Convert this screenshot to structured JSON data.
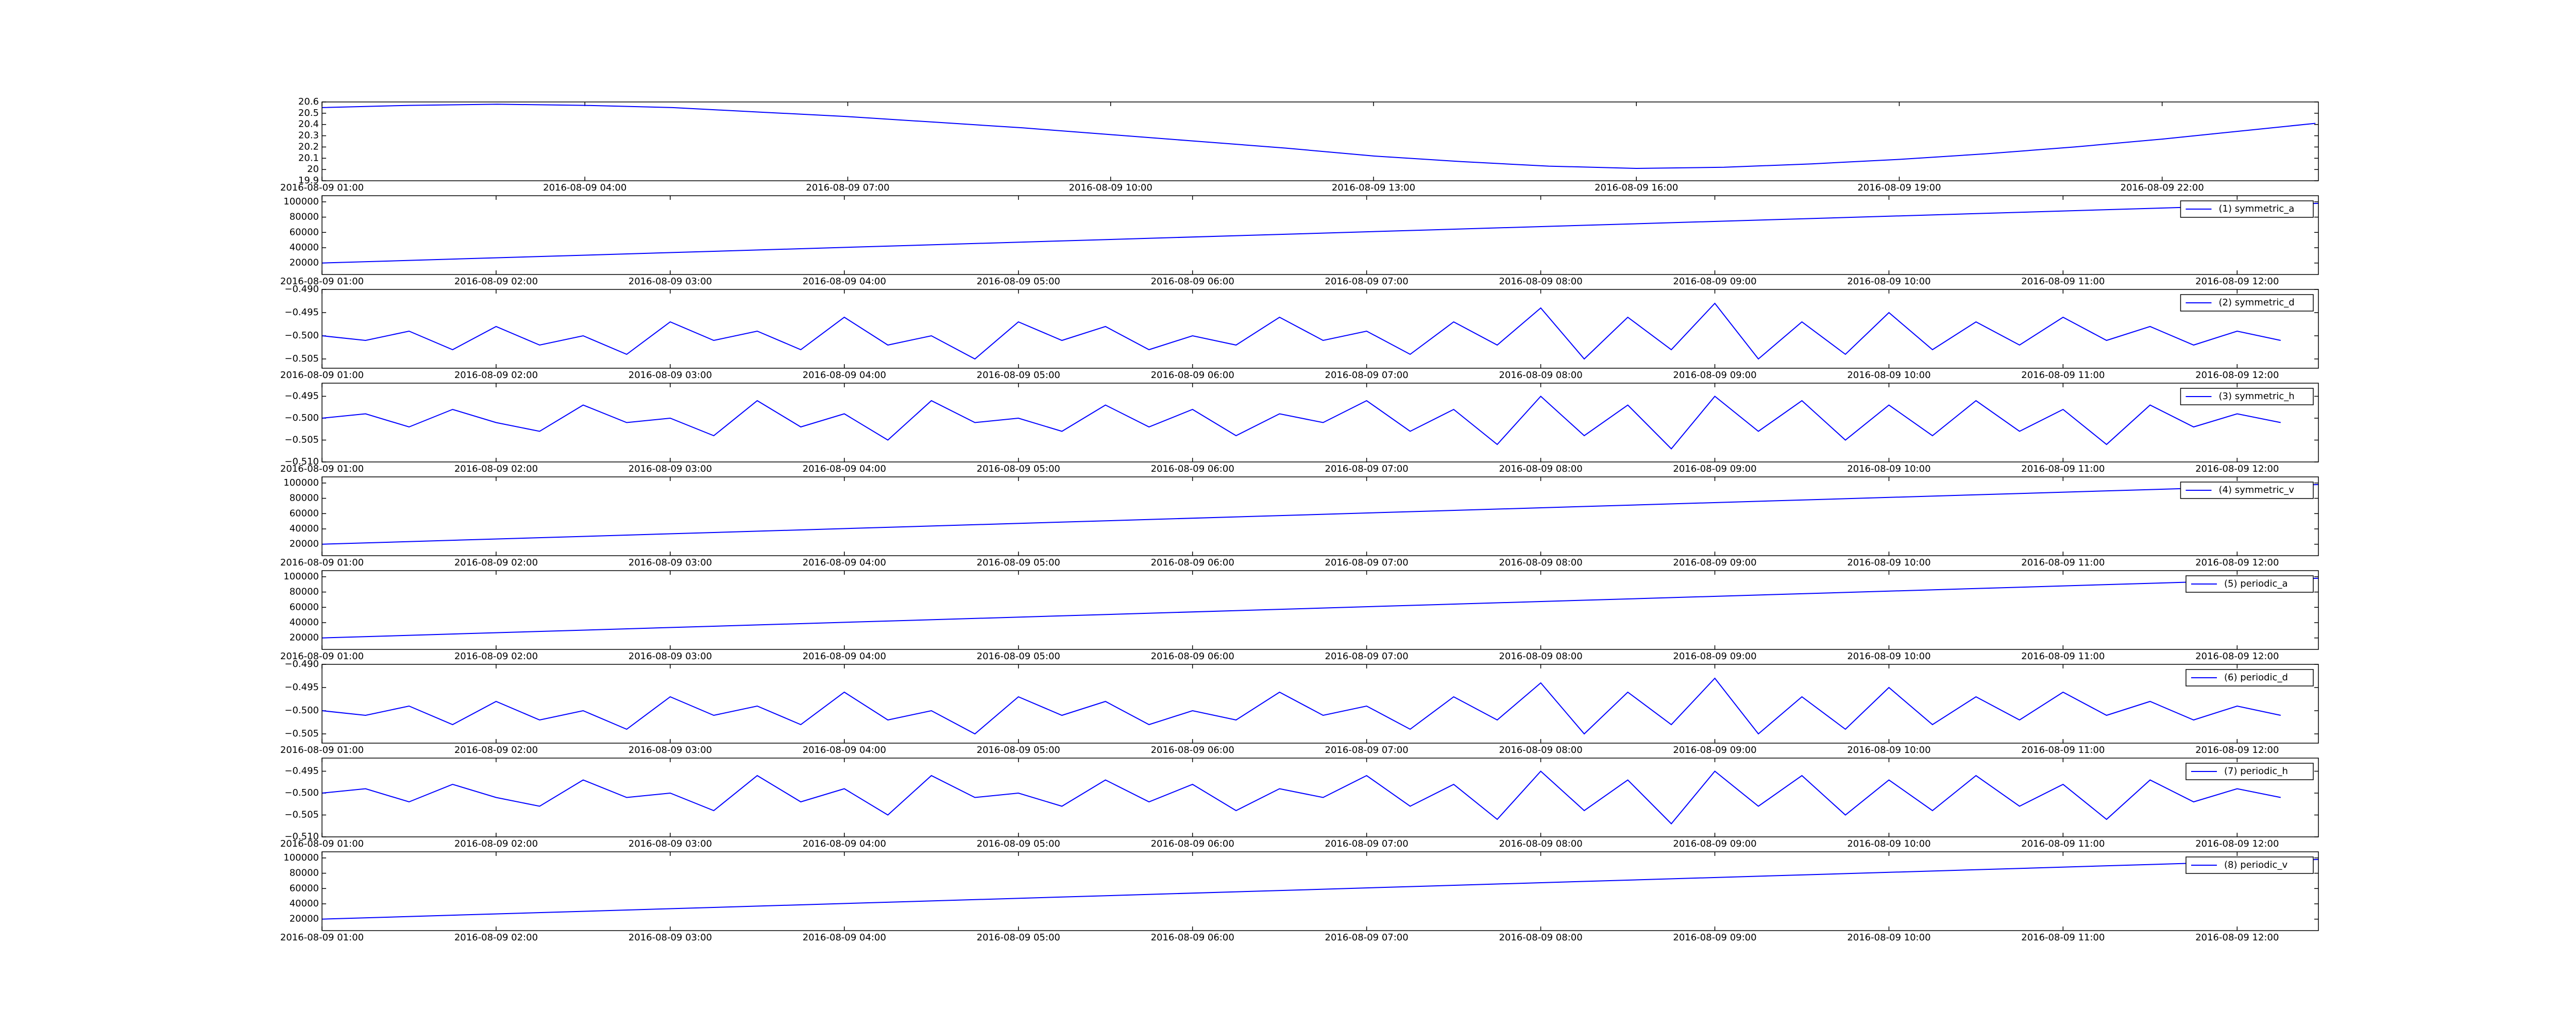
{
  "chart_data": [
    {
      "type": "line",
      "x": [
        "2016-08-09 01:00",
        "2016-08-09 02:00",
        "2016-08-09 03:00",
        "2016-08-09 04:00",
        "2016-08-09 05:00",
        "2016-08-09 06:00",
        "2016-08-09 07:00",
        "2016-08-09 08:00",
        "2016-08-09 09:00",
        "2016-08-09 10:00",
        "2016-08-09 11:00",
        "2016-08-09 12:00",
        "2016-08-09 13:00",
        "2016-08-09 14:00",
        "2016-08-09 15:00",
        "2016-08-09 16:00",
        "2016-08-09 17:00",
        "2016-08-09 18:00",
        "2016-08-09 19:00",
        "2016-08-09 20:00",
        "2016-08-09 21:00",
        "2016-08-09 22:00",
        "2016-08-09 23:00",
        "2016-08-09 23:45"
      ],
      "values": [
        20.55,
        20.57,
        20.58,
        20.57,
        20.55,
        20.51,
        20.47,
        20.42,
        20.37,
        20.31,
        20.25,
        20.19,
        20.12,
        20.07,
        20.03,
        20.01,
        20.02,
        20.05,
        20.09,
        20.14,
        20.2,
        20.27,
        20.35,
        20.41
      ],
      "color": "#0000ff",
      "xlim": [
        "2016-08-09 01:00",
        "2016-08-09 23:47"
      ],
      "xticks": [
        "2016-08-09 01:00",
        "2016-08-09 04:00",
        "2016-08-09 07:00",
        "2016-08-09 10:00",
        "2016-08-09 13:00",
        "2016-08-09 16:00",
        "2016-08-09 19:00",
        "2016-08-09 22:00"
      ],
      "ylim": [
        19.9,
        20.6
      ],
      "yticks": [
        19.9,
        20.0,
        20.1,
        20.2,
        20.3,
        20.4,
        20.5,
        20.6
      ]
    },
    {
      "type": "line",
      "x": [
        "2016-08-09 01:00",
        "2016-08-09 12:28"
      ],
      "series": [
        {
          "name": "(1) symmetric_a",
          "color": "#0000ff",
          "values": [
            20000,
            98000
          ]
        }
      ],
      "legend": "upper right",
      "xlim": [
        "2016-08-09 01:00",
        "2016-08-09 12:28"
      ],
      "xticks": [
        "2016-08-09 01:00",
        "2016-08-09 02:00",
        "2016-08-09 03:00",
        "2016-08-09 04:00",
        "2016-08-09 05:00",
        "2016-08-09 06:00",
        "2016-08-09 07:00",
        "2016-08-09 08:00",
        "2016-08-09 09:00",
        "2016-08-09 10:00",
        "2016-08-09 11:00",
        "2016-08-09 12:00"
      ],
      "ylim": [
        5000,
        108000
      ],
      "yticks": [
        20000,
        40000,
        60000,
        80000,
        100000
      ]
    },
    {
      "type": "line",
      "x": [
        "2016-08-09 01:00",
        "2016-08-09 01:15",
        "2016-08-09 01:30",
        "2016-08-09 01:45",
        "2016-08-09 02:00",
        "2016-08-09 02:15",
        "2016-08-09 02:30",
        "2016-08-09 02:45",
        "2016-08-09 03:00",
        "2016-08-09 03:15",
        "2016-08-09 03:30",
        "2016-08-09 03:45",
        "2016-08-09 04:00",
        "2016-08-09 04:15",
        "2016-08-09 04:30",
        "2016-08-09 04:45",
        "2016-08-09 05:00",
        "2016-08-09 05:15",
        "2016-08-09 05:30",
        "2016-08-09 05:45",
        "2016-08-09 06:00",
        "2016-08-09 06:15",
        "2016-08-09 06:30",
        "2016-08-09 06:45",
        "2016-08-09 07:00",
        "2016-08-09 07:15",
        "2016-08-09 07:30",
        "2016-08-09 07:45",
        "2016-08-09 08:00",
        "2016-08-09 08:15",
        "2016-08-09 08:30",
        "2016-08-09 08:45",
        "2016-08-09 09:00",
        "2016-08-09 09:15",
        "2016-08-09 09:30",
        "2016-08-09 09:45",
        "2016-08-09 10:00",
        "2016-08-09 10:15",
        "2016-08-09 10:30",
        "2016-08-09 10:45",
        "2016-08-09 11:00",
        "2016-08-09 11:15",
        "2016-08-09 11:30",
        "2016-08-09 11:45",
        "2016-08-09 12:00",
        "2016-08-09 12:15"
      ],
      "series": [
        {
          "name": "(2) symmetric_d",
          "color": "#0000ff",
          "values": [
            -0.5,
            -0.501,
            -0.499,
            -0.503,
            -0.498,
            -0.502,
            -0.5,
            -0.504,
            -0.497,
            -0.501,
            -0.499,
            -0.503,
            -0.496,
            -0.502,
            -0.5,
            -0.505,
            -0.497,
            -0.501,
            -0.498,
            -0.503,
            -0.5,
            -0.502,
            -0.496,
            -0.501,
            -0.499,
            -0.504,
            -0.497,
            -0.502,
            -0.494,
            -0.505,
            -0.496,
            -0.503,
            -0.493,
            -0.505,
            -0.497,
            -0.504,
            -0.495,
            -0.503,
            -0.497,
            -0.502,
            -0.496,
            -0.501,
            -0.498,
            -0.502,
            -0.499,
            -0.501
          ]
        }
      ],
      "legend": "upper right",
      "xlim": [
        "2016-08-09 01:00",
        "2016-08-09 12:28"
      ],
      "xticks": [
        "2016-08-09 01:00",
        "2016-08-09 02:00",
        "2016-08-09 03:00",
        "2016-08-09 04:00",
        "2016-08-09 05:00",
        "2016-08-09 06:00",
        "2016-08-09 07:00",
        "2016-08-09 08:00",
        "2016-08-09 09:00",
        "2016-08-09 10:00",
        "2016-08-09 11:00",
        "2016-08-09 12:00"
      ],
      "ylim": [
        -0.507,
        -0.49
      ],
      "yticks": [
        {
          "value": -0.505,
          "label": "−0.505"
        },
        {
          "value": -0.5,
          "label": "−0.500"
        },
        {
          "value": -0.495,
          "label": "−0.495"
        },
        {
          "value": -0.49,
          "label": "−0.490"
        }
      ]
    },
    {
      "type": "line",
      "x": [
        "2016-08-09 01:00",
        "2016-08-09 01:15",
        "2016-08-09 01:30",
        "2016-08-09 01:45",
        "2016-08-09 02:00",
        "2016-08-09 02:15",
        "2016-08-09 02:30",
        "2016-08-09 02:45",
        "2016-08-09 03:00",
        "2016-08-09 03:15",
        "2016-08-09 03:30",
        "2016-08-09 03:45",
        "2016-08-09 04:00",
        "2016-08-09 04:15",
        "2016-08-09 04:30",
        "2016-08-09 04:45",
        "2016-08-09 05:00",
        "2016-08-09 05:15",
        "2016-08-09 05:30",
        "2016-08-09 05:45",
        "2016-08-09 06:00",
        "2016-08-09 06:15",
        "2016-08-09 06:30",
        "2016-08-09 06:45",
        "2016-08-09 07:00",
        "2016-08-09 07:15",
        "2016-08-09 07:30",
        "2016-08-09 07:45",
        "2016-08-09 08:00",
        "2016-08-09 08:15",
        "2016-08-09 08:30",
        "2016-08-09 08:45",
        "2016-08-09 09:00",
        "2016-08-09 09:15",
        "2016-08-09 09:30",
        "2016-08-09 09:45",
        "2016-08-09 10:00",
        "2016-08-09 10:15",
        "2016-08-09 10:30",
        "2016-08-09 10:45",
        "2016-08-09 11:00",
        "2016-08-09 11:15",
        "2016-08-09 11:30",
        "2016-08-09 11:45",
        "2016-08-09 12:00",
        "2016-08-09 12:15"
      ],
      "series": [
        {
          "name": "(3) symmetric_h",
          "color": "#0000ff",
          "values": [
            -0.5,
            -0.499,
            -0.502,
            -0.498,
            -0.501,
            -0.503,
            -0.497,
            -0.501,
            -0.5,
            -0.504,
            -0.496,
            -0.502,
            -0.499,
            -0.505,
            -0.496,
            -0.501,
            -0.5,
            -0.503,
            -0.497,
            -0.502,
            -0.498,
            -0.504,
            -0.499,
            -0.501,
            -0.496,
            -0.503,
            -0.498,
            -0.506,
            -0.495,
            -0.504,
            -0.497,
            -0.507,
            -0.495,
            -0.503,
            -0.496,
            -0.505,
            -0.497,
            -0.504,
            -0.496,
            -0.503,
            -0.498,
            -0.506,
            -0.497,
            -0.502,
            -0.499,
            -0.501
          ]
        }
      ],
      "legend": "upper right",
      "xlim": [
        "2016-08-09 01:00",
        "2016-08-09 12:28"
      ],
      "xticks": [
        "2016-08-09 01:00",
        "2016-08-09 02:00",
        "2016-08-09 03:00",
        "2016-08-09 04:00",
        "2016-08-09 05:00",
        "2016-08-09 06:00",
        "2016-08-09 07:00",
        "2016-08-09 08:00",
        "2016-08-09 09:00",
        "2016-08-09 10:00",
        "2016-08-09 11:00",
        "2016-08-09 12:00"
      ],
      "ylim": [
        -0.51,
        -0.492
      ],
      "yticks": [
        {
          "value": -0.51,
          "label": "−0.510"
        },
        {
          "value": -0.505,
          "label": "−0.505"
        },
        {
          "value": -0.5,
          "label": "−0.500"
        },
        {
          "value": -0.495,
          "label": "−0.495"
        }
      ]
    },
    {
      "type": "line",
      "x": [
        "2016-08-09 01:00",
        "2016-08-09 12:28"
      ],
      "series": [
        {
          "name": "(4) symmetric_v",
          "color": "#0000ff",
          "values": [
            20000,
            98000
          ]
        }
      ],
      "legend": "upper right",
      "xlim": [
        "2016-08-09 01:00",
        "2016-08-09 12:28"
      ],
      "xticks": [
        "2016-08-09 01:00",
        "2016-08-09 02:00",
        "2016-08-09 03:00",
        "2016-08-09 04:00",
        "2016-08-09 05:00",
        "2016-08-09 06:00",
        "2016-08-09 07:00",
        "2016-08-09 08:00",
        "2016-08-09 09:00",
        "2016-08-09 10:00",
        "2016-08-09 11:00",
        "2016-08-09 12:00"
      ],
      "ylim": [
        5000,
        108000
      ],
      "yticks": [
        20000,
        40000,
        60000,
        80000,
        100000
      ]
    },
    {
      "type": "line",
      "x": [
        "2016-08-09 01:00",
        "2016-08-09 12:28"
      ],
      "series": [
        {
          "name": "(5) periodic_a",
          "color": "#0000ff",
          "values": [
            20000,
            98000
          ]
        }
      ],
      "legend": "upper right",
      "xlim": [
        "2016-08-09 01:00",
        "2016-08-09 12:28"
      ],
      "xticks": [
        "2016-08-09 01:00",
        "2016-08-09 02:00",
        "2016-08-09 03:00",
        "2016-08-09 04:00",
        "2016-08-09 05:00",
        "2016-08-09 06:00",
        "2016-08-09 07:00",
        "2016-08-09 08:00",
        "2016-08-09 09:00",
        "2016-08-09 10:00",
        "2016-08-09 11:00",
        "2016-08-09 12:00"
      ],
      "ylim": [
        5000,
        108000
      ],
      "yticks": [
        20000,
        40000,
        60000,
        80000,
        100000
      ]
    },
    {
      "type": "line",
      "x": [
        "2016-08-09 01:00",
        "2016-08-09 01:15",
        "2016-08-09 01:30",
        "2016-08-09 01:45",
        "2016-08-09 02:00",
        "2016-08-09 02:15",
        "2016-08-09 02:30",
        "2016-08-09 02:45",
        "2016-08-09 03:00",
        "2016-08-09 03:15",
        "2016-08-09 03:30",
        "2016-08-09 03:45",
        "2016-08-09 04:00",
        "2016-08-09 04:15",
        "2016-08-09 04:30",
        "2016-08-09 04:45",
        "2016-08-09 05:00",
        "2016-08-09 05:15",
        "2016-08-09 05:30",
        "2016-08-09 05:45",
        "2016-08-09 06:00",
        "2016-08-09 06:15",
        "2016-08-09 06:30",
        "2016-08-09 06:45",
        "2016-08-09 07:00",
        "2016-08-09 07:15",
        "2016-08-09 07:30",
        "2016-08-09 07:45",
        "2016-08-09 08:00",
        "2016-08-09 08:15",
        "2016-08-09 08:30",
        "2016-08-09 08:45",
        "2016-08-09 09:00",
        "2016-08-09 09:15",
        "2016-08-09 09:30",
        "2016-08-09 09:45",
        "2016-08-09 10:00",
        "2016-08-09 10:15",
        "2016-08-09 10:30",
        "2016-08-09 10:45",
        "2016-08-09 11:00",
        "2016-08-09 11:15",
        "2016-08-09 11:30",
        "2016-08-09 11:45",
        "2016-08-09 12:00",
        "2016-08-09 12:15"
      ],
      "series": [
        {
          "name": "(6) periodic_d",
          "color": "#0000ff",
          "values": [
            -0.5,
            -0.501,
            -0.499,
            -0.503,
            -0.498,
            -0.502,
            -0.5,
            -0.504,
            -0.497,
            -0.501,
            -0.499,
            -0.503,
            -0.496,
            -0.502,
            -0.5,
            -0.505,
            -0.497,
            -0.501,
            -0.498,
            -0.503,
            -0.5,
            -0.502,
            -0.496,
            -0.501,
            -0.499,
            -0.504,
            -0.497,
            -0.502,
            -0.494,
            -0.505,
            -0.496,
            -0.503,
            -0.493,
            -0.505,
            -0.497,
            -0.504,
            -0.495,
            -0.503,
            -0.497,
            -0.502,
            -0.496,
            -0.501,
            -0.498,
            -0.502,
            -0.499,
            -0.501
          ]
        }
      ],
      "legend": "upper right",
      "xlim": [
        "2016-08-09 01:00",
        "2016-08-09 12:28"
      ],
      "xticks": [
        "2016-08-09 01:00",
        "2016-08-09 02:00",
        "2016-08-09 03:00",
        "2016-08-09 04:00",
        "2016-08-09 05:00",
        "2016-08-09 06:00",
        "2016-08-09 07:00",
        "2016-08-09 08:00",
        "2016-08-09 09:00",
        "2016-08-09 10:00",
        "2016-08-09 11:00",
        "2016-08-09 12:00"
      ],
      "ylim": [
        -0.507,
        -0.49
      ],
      "yticks": [
        {
          "value": -0.505,
          "label": "−0.505"
        },
        {
          "value": -0.5,
          "label": "−0.500"
        },
        {
          "value": -0.495,
          "label": "−0.495"
        },
        {
          "value": -0.49,
          "label": "−0.490"
        }
      ]
    },
    {
      "type": "line",
      "x": [
        "2016-08-09 01:00",
        "2016-08-09 01:15",
        "2016-08-09 01:30",
        "2016-08-09 01:45",
        "2016-08-09 02:00",
        "2016-08-09 02:15",
        "2016-08-09 02:30",
        "2016-08-09 02:45",
        "2016-08-09 03:00",
        "2016-08-09 03:15",
        "2016-08-09 03:30",
        "2016-08-09 03:45",
        "2016-08-09 04:00",
        "2016-08-09 04:15",
        "2016-08-09 04:30",
        "2016-08-09 04:45",
        "2016-08-09 05:00",
        "2016-08-09 05:15",
        "2016-08-09 05:30",
        "2016-08-09 05:45",
        "2016-08-09 06:00",
        "2016-08-09 06:15",
        "2016-08-09 06:30",
        "2016-08-09 06:45",
        "2016-08-09 07:00",
        "2016-08-09 07:15",
        "2016-08-09 07:30",
        "2016-08-09 07:45",
        "2016-08-09 08:00",
        "2016-08-09 08:15",
        "2016-08-09 08:30",
        "2016-08-09 08:45",
        "2016-08-09 09:00",
        "2016-08-09 09:15",
        "2016-08-09 09:30",
        "2016-08-09 09:45",
        "2016-08-09 10:00",
        "2016-08-09 10:15",
        "2016-08-09 10:30",
        "2016-08-09 10:45",
        "2016-08-09 11:00",
        "2016-08-09 11:15",
        "2016-08-09 11:30",
        "2016-08-09 11:45",
        "2016-08-09 12:00",
        "2016-08-09 12:15"
      ],
      "series": [
        {
          "name": "(7) periodic_h",
          "color": "#0000ff",
          "values": [
            -0.5,
            -0.499,
            -0.502,
            -0.498,
            -0.501,
            -0.503,
            -0.497,
            -0.501,
            -0.5,
            -0.504,
            -0.496,
            -0.502,
            -0.499,
            -0.505,
            -0.496,
            -0.501,
            -0.5,
            -0.503,
            -0.497,
            -0.502,
            -0.498,
            -0.504,
            -0.499,
            -0.501,
            -0.496,
            -0.503,
            -0.498,
            -0.506,
            -0.495,
            -0.504,
            -0.497,
            -0.507,
            -0.495,
            -0.503,
            -0.496,
            -0.505,
            -0.497,
            -0.504,
            -0.496,
            -0.503,
            -0.498,
            -0.506,
            -0.497,
            -0.502,
            -0.499,
            -0.501
          ]
        }
      ],
      "legend": "upper right",
      "xlim": [
        "2016-08-09 01:00",
        "2016-08-09 12:28"
      ],
      "xticks": [
        "2016-08-09 01:00",
        "2016-08-09 02:00",
        "2016-08-09 03:00",
        "2016-08-09 04:00",
        "2016-08-09 05:00",
        "2016-08-09 06:00",
        "2016-08-09 07:00",
        "2016-08-09 08:00",
        "2016-08-09 09:00",
        "2016-08-09 10:00",
        "2016-08-09 11:00",
        "2016-08-09 12:00"
      ],
      "ylim": [
        -0.51,
        -0.492
      ],
      "yticks": [
        {
          "value": -0.51,
          "label": "−0.510"
        },
        {
          "value": -0.505,
          "label": "−0.505"
        },
        {
          "value": -0.5,
          "label": "−0.500"
        },
        {
          "value": -0.495,
          "label": "−0.495"
        }
      ]
    },
    {
      "type": "line",
      "x": [
        "2016-08-09 01:00",
        "2016-08-09 12:28"
      ],
      "series": [
        {
          "name": "(8) periodic_v",
          "color": "#0000ff",
          "values": [
            20000,
            98000
          ]
        }
      ],
      "legend": "upper right",
      "xlim": [
        "2016-08-09 01:00",
        "2016-08-09 12:28"
      ],
      "xticks": [
        "2016-08-09 01:00",
        "2016-08-09 02:00",
        "2016-08-09 03:00",
        "2016-08-09 04:00",
        "2016-08-09 05:00",
        "2016-08-09 06:00",
        "2016-08-09 07:00",
        "2016-08-09 08:00",
        "2016-08-09 09:00",
        "2016-08-09 10:00",
        "2016-08-09 11:00",
        "2016-08-09 12:00"
      ],
      "ylim": [
        5000,
        108000
      ],
      "yticks": [
        20000,
        40000,
        60000,
        80000,
        100000
      ]
    }
  ]
}
